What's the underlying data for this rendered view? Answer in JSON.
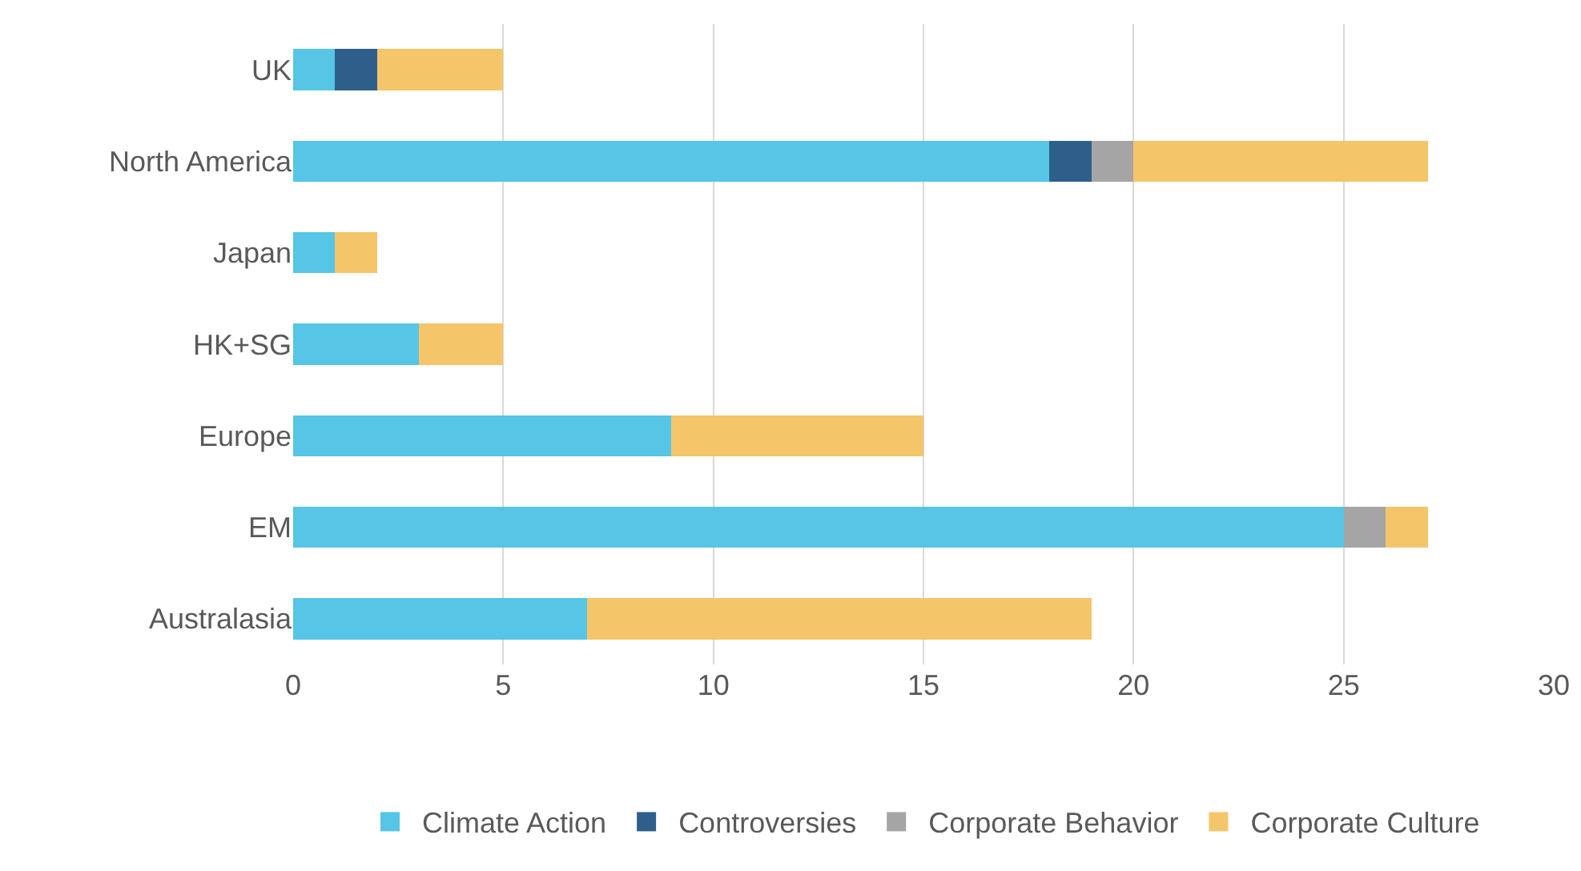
{
  "chart_data": {
    "type": "bar",
    "orientation": "horizontal",
    "stacked": true,
    "categories": [
      "UK",
      "North America",
      "Japan",
      "HK+SG",
      "Europe",
      "EM",
      "Australasia"
    ],
    "series": [
      {
        "name": "Climate Action",
        "color": "#56c5e6",
        "values": [
          1,
          18,
          1,
          3,
          9,
          25,
          7
        ]
      },
      {
        "name": "Controversies",
        "color": "#2e5f8a",
        "values": [
          1,
          1,
          0,
          0,
          0,
          0,
          0
        ]
      },
      {
        "name": "Corporate Behavior",
        "color": "#a5a5a5",
        "values": [
          0,
          1,
          0,
          0,
          0,
          1,
          0
        ]
      },
      {
        "name": "Corporate Culture",
        "color": "#f5c56a",
        "values": [
          3,
          7,
          1,
          2,
          6,
          1,
          12
        ]
      }
    ],
    "xlim": [
      0,
      30
    ],
    "xticks": [
      0,
      5,
      10,
      15,
      20,
      25,
      30
    ],
    "grid": "x",
    "legend": "bottom"
  }
}
